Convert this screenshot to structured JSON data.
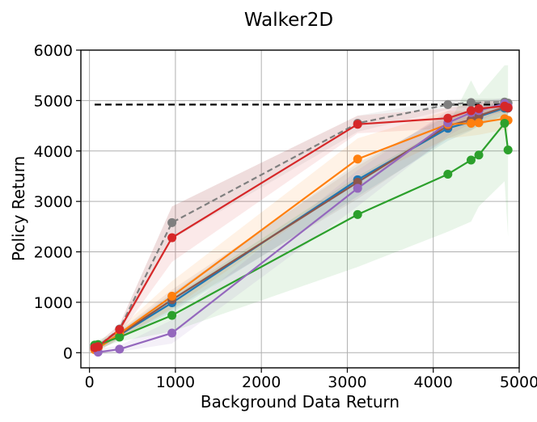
{
  "chart_data": {
    "type": "line",
    "title": "Walker2D",
    "xlabel": "Background Data Return",
    "ylabel": "Policy Return",
    "xlim": [
      -100,
      5000
    ],
    "ylim": [
      -300,
      6000
    ],
    "x_ticks": [
      0,
      1000,
      2000,
      3000,
      4000,
      5000
    ],
    "y_ticks": [
      0,
      1000,
      2000,
      3000,
      4000,
      5000,
      6000
    ],
    "grid": true,
    "reference_line": {
      "x": [
        60,
        4880
      ],
      "y": 4920,
      "color": "#000000",
      "style": "dashed"
    },
    "series": [
      {
        "color": "#7f7f7f",
        "style": "dashed",
        "points": [
          [
            60,
            100
          ],
          [
            100,
            130
          ],
          [
            350,
            470
          ],
          [
            960,
            2580
          ],
          [
            3120,
            4550
          ],
          [
            4170,
            4920
          ],
          [
            4440,
            4960
          ],
          [
            4830,
            4970
          ],
          [
            4870,
            4950
          ]
        ],
        "band": [
          [
            60,
            30,
            170
          ],
          [
            100,
            60,
            200
          ],
          [
            350,
            380,
            560
          ],
          [
            960,
            2250,
            2900
          ],
          [
            3120,
            4380,
            4700
          ],
          [
            4170,
            4820,
            5020
          ],
          [
            4440,
            4880,
            5040
          ],
          [
            4830,
            4900,
            5040
          ],
          [
            4870,
            4880,
            5020
          ]
        ]
      },
      {
        "color": "#1f77b4",
        "style": "solid",
        "points": [
          [
            60,
            90
          ],
          [
            100,
            110
          ],
          [
            350,
            350
          ],
          [
            960,
            990
          ],
          [
            3120,
            3430
          ],
          [
            4170,
            4450
          ],
          [
            4440,
            4580
          ],
          [
            4530,
            4680
          ],
          [
            4830,
            4850
          ],
          [
            4870,
            4850
          ]
        ],
        "band": [
          [
            60,
            20,
            160
          ],
          [
            100,
            40,
            180
          ],
          [
            350,
            270,
            430
          ],
          [
            960,
            800,
            1180
          ],
          [
            3120,
            3100,
            3760
          ],
          [
            4170,
            4200,
            4700
          ],
          [
            4440,
            4400,
            4760
          ],
          [
            4530,
            4500,
            4860
          ],
          [
            4830,
            4700,
            5000
          ],
          [
            4870,
            4700,
            5000
          ]
        ]
      },
      {
        "color": "#8c564b",
        "style": "solid",
        "points": [
          [
            60,
            80
          ],
          [
            100,
            100
          ],
          [
            350,
            360
          ],
          [
            960,
            1050
          ],
          [
            3120,
            3380
          ],
          [
            4170,
            4500
          ],
          [
            4440,
            4620
          ],
          [
            4530,
            4700
          ],
          [
            4830,
            4870
          ],
          [
            4870,
            4850
          ]
        ],
        "band": [
          [
            60,
            20,
            150
          ],
          [
            100,
            40,
            170
          ],
          [
            350,
            280,
            440
          ],
          [
            960,
            850,
            1250
          ],
          [
            3120,
            3050,
            3700
          ],
          [
            4170,
            4250,
            4750
          ],
          [
            4440,
            4420,
            4800
          ],
          [
            4530,
            4500,
            4880
          ],
          [
            4830,
            4720,
            5000
          ],
          [
            4870,
            4700,
            5000
          ]
        ]
      },
      {
        "color": "#ff7f0e",
        "style": "solid",
        "points": [
          [
            60,
            60
          ],
          [
            100,
            90
          ],
          [
            350,
            380
          ],
          [
            960,
            1120
          ],
          [
            3120,
            3840
          ],
          [
            4170,
            4530
          ],
          [
            4440,
            4550
          ],
          [
            4530,
            4560
          ],
          [
            4830,
            4640
          ],
          [
            4870,
            4610
          ]
        ],
        "band": [
          [
            60,
            0,
            140
          ],
          [
            100,
            20,
            170
          ],
          [
            350,
            280,
            480
          ],
          [
            960,
            880,
            1420
          ],
          [
            3120,
            3400,
            4250
          ],
          [
            4170,
            4250,
            4800
          ],
          [
            4440,
            4300,
            4800
          ],
          [
            4530,
            4320,
            4800
          ],
          [
            4830,
            4420,
            4840
          ],
          [
            4870,
            4400,
            4820
          ]
        ]
      },
      {
        "color": "#2ca02c",
        "style": "solid",
        "points": [
          [
            60,
            150
          ],
          [
            100,
            160
          ],
          [
            350,
            310
          ],
          [
            960,
            740
          ],
          [
            3120,
            2740
          ],
          [
            4170,
            3540
          ],
          [
            4440,
            3820
          ],
          [
            4530,
            3920
          ],
          [
            4830,
            4550
          ],
          [
            4870,
            4020
          ]
        ],
        "band": [
          [
            60,
            60,
            250
          ],
          [
            100,
            80,
            260
          ],
          [
            350,
            220,
            410
          ],
          [
            960,
            420,
            1100
          ],
          [
            3120,
            1700,
            3500
          ],
          [
            4170,
            2400,
            4500
          ],
          [
            4440,
            2600,
            5400
          ],
          [
            4530,
            2900,
            5100
          ],
          [
            4830,
            3400,
            5700
          ],
          [
            4870,
            2300,
            5700
          ]
        ]
      },
      {
        "color": "#9467bd",
        "style": "solid",
        "points": [
          [
            60,
            100
          ],
          [
            100,
            10
          ],
          [
            350,
            70
          ],
          [
            960,
            390
          ],
          [
            3120,
            3260
          ],
          [
            4170,
            4560
          ],
          [
            4440,
            4760
          ],
          [
            4530,
            4800
          ],
          [
            4830,
            4940
          ],
          [
            4870,
            4880
          ]
        ],
        "band": [
          [
            60,
            30,
            180
          ],
          [
            100,
            -40,
            80
          ],
          [
            350,
            20,
            140
          ],
          [
            960,
            180,
            650
          ],
          [
            3120,
            2900,
            3620
          ],
          [
            4170,
            4300,
            4800
          ],
          [
            4440,
            4550,
            4950
          ],
          [
            4530,
            4600,
            4980
          ],
          [
            4830,
            4800,
            5050
          ],
          [
            4870,
            4750,
            5000
          ]
        ]
      },
      {
        "color": "#d62728",
        "style": "solid",
        "points": [
          [
            60,
            100
          ],
          [
            100,
            120
          ],
          [
            350,
            460
          ],
          [
            960,
            2280
          ],
          [
            3120,
            4530
          ],
          [
            4170,
            4650
          ],
          [
            4440,
            4800
          ],
          [
            4530,
            4840
          ],
          [
            4830,
            4890
          ],
          [
            4870,
            4860
          ]
        ],
        "band": [
          [
            60,
            40,
            170
          ],
          [
            100,
            60,
            190
          ],
          [
            350,
            360,
            560
          ],
          [
            960,
            1800,
            2900
          ],
          [
            3120,
            4350,
            4700
          ],
          [
            4170,
            4450,
            4850
          ],
          [
            4440,
            4650,
            4950
          ],
          [
            4530,
            4700,
            4980
          ],
          [
            4830,
            4780,
            5000
          ],
          [
            4870,
            4740,
            4980
          ]
        ]
      }
    ]
  }
}
